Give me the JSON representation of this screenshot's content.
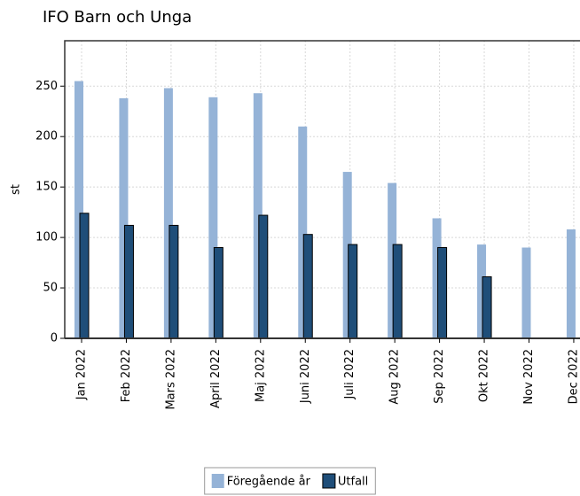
{
  "chart_data": {
    "type": "bar",
    "title": "IFO Barn och Unga",
    "y_label": "st",
    "categories": [
      "Jan 2022",
      "Feb 2022",
      "Mars 2022",
      "April 2022",
      "Maj 2022",
      "Juni 2022",
      "Juli 2022",
      "Aug 2022",
      "Sep 2022",
      "Okt 2022",
      "Nov 2022",
      "Dec 2022"
    ],
    "series": [
      {
        "name": "Föregående år",
        "color": "#95b3d7",
        "values": [
          255,
          238,
          248,
          239,
          243,
          210,
          165,
          154,
          119,
          93,
          90,
          108
        ]
      },
      {
        "name": "Utfall",
        "color": "#1f4e79",
        "values": [
          124,
          112,
          112,
          90,
          122,
          103,
          93,
          93,
          90,
          61,
          null,
          null
        ]
      }
    ],
    "ylim": [
      0,
      295
    ],
    "yticks": [
      0,
      50,
      100,
      150,
      200,
      250
    ],
    "grid": true,
    "legend": "bottom"
  }
}
